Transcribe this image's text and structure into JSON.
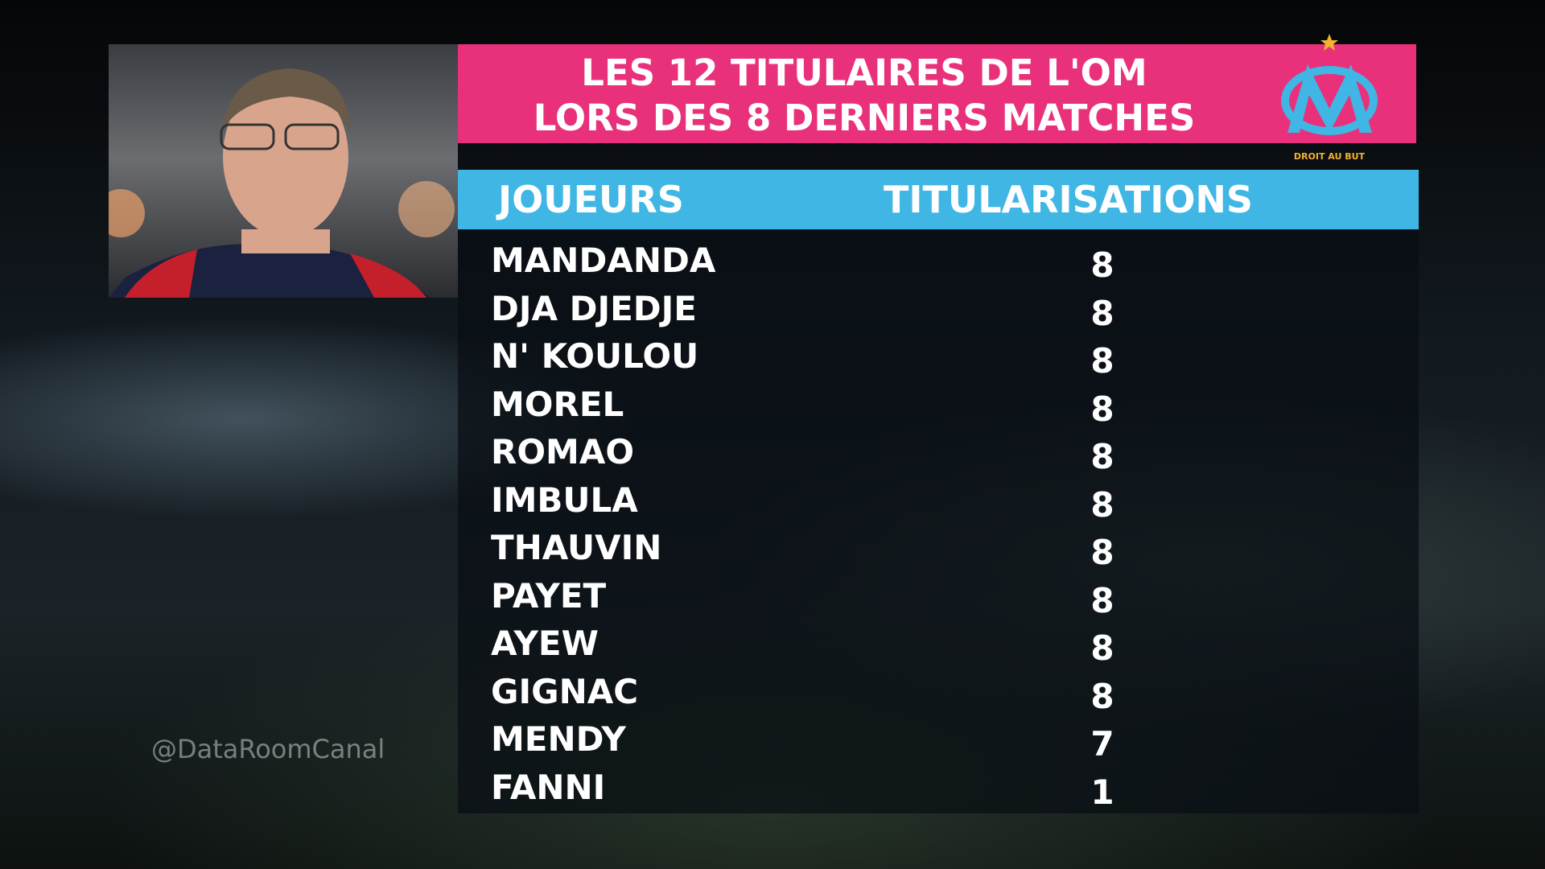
{
  "header": {
    "title": [
      "LES 12 TITULAIRES DE L'OM",
      "LORS DES 8 DERNIERS MATCHES"
    ],
    "logo_text": "DROIT AU BUT"
  },
  "table": {
    "columns": [
      "JOUEURS",
      "TITULARISATIONS"
    ],
    "rows": [
      [
        "MANDANDA",
        8
      ],
      [
        "DJA DJEDJE",
        8
      ],
      [
        "N' KOULOU",
        8
      ],
      [
        "MOREL",
        8
      ],
      [
        "ROMAO",
        8
      ],
      [
        "IMBULA",
        8
      ],
      [
        "THAUVIN",
        8
      ],
      [
        "PAYET",
        8
      ],
      [
        "AYEW",
        8
      ],
      [
        "GIGNAC",
        8
      ],
      [
        "MENDY",
        7
      ],
      [
        "FANNI",
        1
      ]
    ]
  },
  "watermark": "@DataRoomCanal"
}
